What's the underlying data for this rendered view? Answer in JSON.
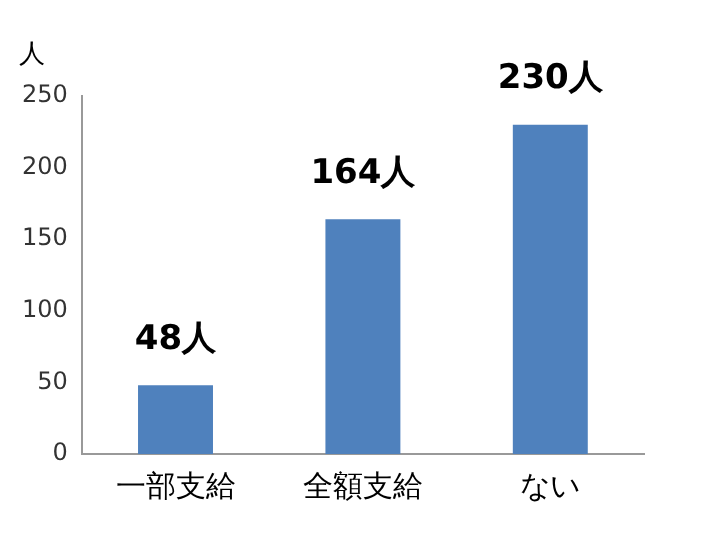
{
  "chart_data": {
    "type": "bar",
    "ylabel": "人",
    "categories": [
      "一部支給",
      "全額支給",
      "ない"
    ],
    "values": [
      48,
      164,
      230
    ],
    "value_labels": [
      "48人",
      "164人",
      "230人"
    ],
    "color": "#4f81bd",
    "ylim": [
      0,
      250
    ],
    "yticks": [
      0,
      50,
      100,
      150,
      200,
      250
    ],
    "grid": false,
    "legend": false
  }
}
